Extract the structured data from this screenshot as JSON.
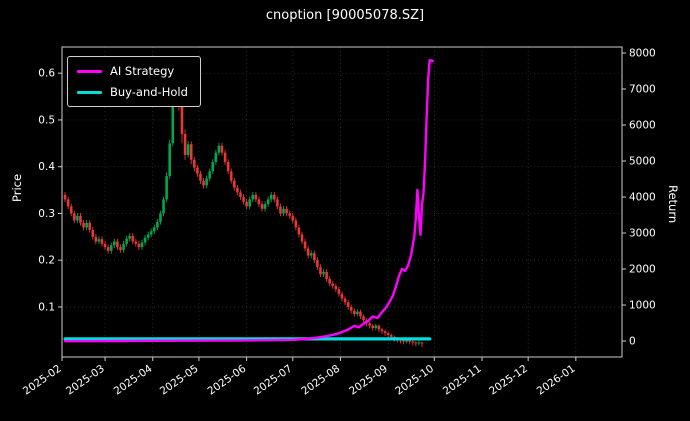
{
  "chart_data": {
    "type": "candlestick+line",
    "title": "cnoption [90005078.SZ]",
    "ylabel_left": "Price",
    "ylabel_right": "Return",
    "legend_position": "upper-left",
    "grid": "faint-dotted",
    "background_color": "#000000",
    "text_color": "#ffffff",
    "day_range": [
      0,
      364
    ],
    "price_range": [
      -0.007,
      0.656
    ],
    "return_range": [
      -444,
      8167
    ],
    "price_ticks": [
      0.1,
      0.2,
      0.3,
      0.4,
      0.5,
      0.6
    ],
    "return_ticks": [
      0,
      1000,
      2000,
      3000,
      4000,
      5000,
      6000,
      7000,
      8000
    ],
    "x_ticks": [
      {
        "label": "2025-02",
        "day": 0
      },
      {
        "label": "2025-03",
        "day": 28
      },
      {
        "label": "2025-04",
        "day": 59
      },
      {
        "label": "2025-05",
        "day": 89
      },
      {
        "label": "2025-06",
        "day": 120
      },
      {
        "label": "2025-07",
        "day": 150
      },
      {
        "label": "2025-08",
        "day": 181
      },
      {
        "label": "2025-09",
        "day": 212
      },
      {
        "label": "2025-10",
        "day": 242
      },
      {
        "label": "2025-11",
        "day": 273
      },
      {
        "label": "2025-12",
        "day": 303
      },
      {
        "label": "2026-01",
        "day": 334
      }
    ],
    "colors": {
      "up": "#00a650",
      "down": "#e83737",
      "ai": "#ff00ff",
      "bah": "#00dddd"
    },
    "candles": {
      "start_day": 2,
      "step_days": 2,
      "ohlc": [
        [
          0.34,
          0.346,
          0.324,
          0.33
        ],
        [
          0.33,
          0.336,
          0.309,
          0.315
        ],
        [
          0.315,
          0.321,
          0.294,
          0.3
        ],
        [
          0.3,
          0.306,
          0.279,
          0.285
        ],
        [
          0.285,
          0.301,
          0.279,
          0.295
        ],
        [
          0.295,
          0.301,
          0.274,
          0.28
        ],
        [
          0.28,
          0.286,
          0.264,
          0.27
        ],
        [
          0.27,
          0.286,
          0.264,
          0.28
        ],
        [
          0.28,
          0.286,
          0.259,
          0.265
        ],
        [
          0.265,
          0.271,
          0.244,
          0.25
        ],
        [
          0.25,
          0.256,
          0.234,
          0.24
        ],
        [
          0.24,
          0.251,
          0.234,
          0.245
        ],
        [
          0.245,
          0.251,
          0.229,
          0.235
        ],
        [
          0.235,
          0.241,
          0.222,
          0.228
        ],
        [
          0.228,
          0.234,
          0.214,
          0.22
        ],
        [
          0.22,
          0.238,
          0.214,
          0.232
        ],
        [
          0.232,
          0.246,
          0.226,
          0.24
        ],
        [
          0.24,
          0.246,
          0.222,
          0.228
        ],
        [
          0.228,
          0.234,
          0.216,
          0.222
        ],
        [
          0.222,
          0.241,
          0.216,
          0.235
        ],
        [
          0.235,
          0.252,
          0.229,
          0.246
        ],
        [
          0.246,
          0.258,
          0.24,
          0.252
        ],
        [
          0.252,
          0.258,
          0.234,
          0.24
        ],
        [
          0.24,
          0.246,
          0.229,
          0.235
        ],
        [
          0.235,
          0.241,
          0.222,
          0.228
        ],
        [
          0.228,
          0.244,
          0.222,
          0.238
        ],
        [
          0.238,
          0.254,
          0.232,
          0.248
        ],
        [
          0.248,
          0.261,
          0.242,
          0.255
        ],
        [
          0.255,
          0.268,
          0.249,
          0.262
        ],
        [
          0.262,
          0.276,
          0.256,
          0.27
        ],
        [
          0.27,
          0.288,
          0.264,
          0.282
        ],
        [
          0.282,
          0.306,
          0.276,
          0.3
        ],
        [
          0.3,
          0.336,
          0.294,
          0.33
        ],
        [
          0.33,
          0.388,
          0.324,
          0.38
        ],
        [
          0.38,
          0.458,
          0.374,
          0.45
        ],
        [
          0.45,
          0.545,
          0.444,
          0.535
        ],
        [
          0.535,
          0.605,
          0.528,
          0.59
        ],
        [
          0.59,
          0.6,
          0.52,
          0.54
        ],
        [
          0.54,
          0.55,
          0.45,
          0.47
        ],
        [
          0.47,
          0.48,
          0.415,
          0.425
        ],
        [
          0.425,
          0.455,
          0.42,
          0.448
        ],
        [
          0.448,
          0.454,
          0.405,
          0.415
        ],
        [
          0.415,
          0.421,
          0.39,
          0.398
        ],
        [
          0.398,
          0.404,
          0.378,
          0.385
        ],
        [
          0.385,
          0.391,
          0.363,
          0.37
        ],
        [
          0.37,
          0.376,
          0.353,
          0.36
        ],
        [
          0.36,
          0.381,
          0.354,
          0.375
        ],
        [
          0.375,
          0.396,
          0.369,
          0.39
        ],
        [
          0.39,
          0.416,
          0.384,
          0.41
        ],
        [
          0.41,
          0.436,
          0.404,
          0.43
        ],
        [
          0.43,
          0.451,
          0.424,
          0.445
        ],
        [
          0.445,
          0.451,
          0.424,
          0.43
        ],
        [
          0.43,
          0.436,
          0.404,
          0.41
        ],
        [
          0.41,
          0.416,
          0.384,
          0.39
        ],
        [
          0.39,
          0.396,
          0.364,
          0.37
        ],
        [
          0.37,
          0.376,
          0.349,
          0.355
        ],
        [
          0.355,
          0.361,
          0.339,
          0.345
        ],
        [
          0.345,
          0.351,
          0.329,
          0.335
        ],
        [
          0.335,
          0.341,
          0.319,
          0.325
        ],
        [
          0.325,
          0.331,
          0.309,
          0.315
        ],
        [
          0.315,
          0.336,
          0.309,
          0.33
        ],
        [
          0.33,
          0.346,
          0.324,
          0.34
        ],
        [
          0.34,
          0.346,
          0.324,
          0.33
        ],
        [
          0.33,
          0.336,
          0.314,
          0.32
        ],
        [
          0.32,
          0.326,
          0.304,
          0.31
        ],
        [
          0.31,
          0.326,
          0.304,
          0.32
        ],
        [
          0.32,
          0.336,
          0.314,
          0.33
        ],
        [
          0.33,
          0.346,
          0.324,
          0.34
        ],
        [
          0.34,
          0.346,
          0.324,
          0.33
        ],
        [
          0.33,
          0.336,
          0.309,
          0.315
        ],
        [
          0.315,
          0.321,
          0.294,
          0.3
        ],
        [
          0.3,
          0.316,
          0.294,
          0.31
        ],
        [
          0.31,
          0.316,
          0.294,
          0.3
        ],
        [
          0.3,
          0.306,
          0.289,
          0.295
        ],
        [
          0.295,
          0.301,
          0.279,
          0.285
        ],
        [
          0.285,
          0.291,
          0.264,
          0.27
        ],
        [
          0.27,
          0.276,
          0.249,
          0.255
        ],
        [
          0.255,
          0.261,
          0.234,
          0.24
        ],
        [
          0.24,
          0.246,
          0.219,
          0.225
        ],
        [
          0.225,
          0.231,
          0.204,
          0.21
        ],
        [
          0.21,
          0.221,
          0.204,
          0.215
        ],
        [
          0.215,
          0.221,
          0.194,
          0.2
        ],
        [
          0.2,
          0.206,
          0.179,
          0.185
        ],
        [
          0.185,
          0.191,
          0.164,
          0.17
        ],
        [
          0.17,
          0.181,
          0.164,
          0.175
        ],
        [
          0.175,
          0.181,
          0.154,
          0.16
        ],
        [
          0.16,
          0.166,
          0.144,
          0.15
        ],
        [
          0.15,
          0.156,
          0.139,
          0.145
        ],
        [
          0.145,
          0.15,
          0.132,
          0.138
        ],
        [
          0.138,
          0.143,
          0.122,
          0.128
        ],
        [
          0.128,
          0.133,
          0.112,
          0.118
        ],
        [
          0.118,
          0.123,
          0.104,
          0.11
        ],
        [
          0.11,
          0.115,
          0.094,
          0.1
        ],
        [
          0.1,
          0.105,
          0.086,
          0.092
        ],
        [
          0.092,
          0.097,
          0.079,
          0.085
        ],
        [
          0.085,
          0.095,
          0.08,
          0.09
        ],
        [
          0.09,
          0.094,
          0.074,
          0.08
        ],
        [
          0.08,
          0.084,
          0.066,
          0.072
        ],
        [
          0.072,
          0.076,
          0.059,
          0.065
        ],
        [
          0.065,
          0.069,
          0.054,
          0.06
        ],
        [
          0.06,
          0.064,
          0.049,
          0.055
        ],
        [
          0.055,
          0.064,
          0.05,
          0.06
        ],
        [
          0.06,
          0.063,
          0.046,
          0.052
        ],
        [
          0.052,
          0.055,
          0.042,
          0.048
        ],
        [
          0.048,
          0.051,
          0.038,
          0.044
        ],
        [
          0.044,
          0.047,
          0.034,
          0.04
        ],
        [
          0.04,
          0.043,
          0.03,
          0.036
        ],
        [
          0.036,
          0.039,
          0.026,
          0.032
        ],
        [
          0.032,
          0.035,
          0.024,
          0.03
        ],
        [
          0.03,
          0.033,
          0.022,
          0.028
        ],
        [
          0.028,
          0.031,
          0.02,
          0.026
        ],
        [
          0.026,
          0.033,
          0.022,
          0.03
        ],
        [
          0.03,
          0.032,
          0.02,
          0.026
        ],
        [
          0.026,
          0.029,
          0.018,
          0.024
        ],
        [
          0.024,
          0.027,
          0.016,
          0.022
        ],
        [
          0.022,
          0.028,
          0.018,
          0.024
        ],
        [
          0.024,
          0.026,
          0.014,
          0.022
        ]
      ]
    },
    "series": [
      {
        "name": "AI Strategy",
        "color": "#ff00ff",
        "axis": "return",
        "points": [
          [
            2,
            -5
          ],
          [
            20,
            -5
          ],
          [
            40,
            0
          ],
          [
            60,
            5
          ],
          [
            80,
            8
          ],
          [
            100,
            12
          ],
          [
            120,
            18
          ],
          [
            140,
            25
          ],
          [
            150,
            35
          ],
          [
            158,
            55
          ],
          [
            164,
            80
          ],
          [
            170,
            120
          ],
          [
            176,
            170
          ],
          [
            181,
            230
          ],
          [
            186,
            320
          ],
          [
            190,
            420
          ],
          [
            193,
            380
          ],
          [
            196,
            480
          ],
          [
            199,
            560
          ],
          [
            202,
            680
          ],
          [
            205,
            640
          ],
          [
            208,
            800
          ],
          [
            211,
            950
          ],
          [
            213,
            1100
          ],
          [
            215,
            1250
          ],
          [
            217,
            1500
          ],
          [
            219,
            1800
          ],
          [
            221,
            2000
          ],
          [
            223,
            1950
          ],
          [
            225,
            2100
          ],
          [
            227,
            2400
          ],
          [
            229,
            2900
          ],
          [
            230,
            3400
          ],
          [
            231,
            4200
          ],
          [
            232,
            3500
          ],
          [
            233,
            2950
          ],
          [
            234,
            3800
          ],
          [
            235,
            4100
          ],
          [
            236,
            5000
          ],
          [
            237,
            6200
          ],
          [
            238,
            7300
          ],
          [
            239,
            7800
          ],
          [
            241,
            7780
          ]
        ]
      },
      {
        "name": "Buy-and-Hold",
        "color": "#00dddd",
        "axis": "return",
        "points": [
          [
            2,
            60
          ],
          [
            239,
            60
          ]
        ]
      }
    ]
  }
}
